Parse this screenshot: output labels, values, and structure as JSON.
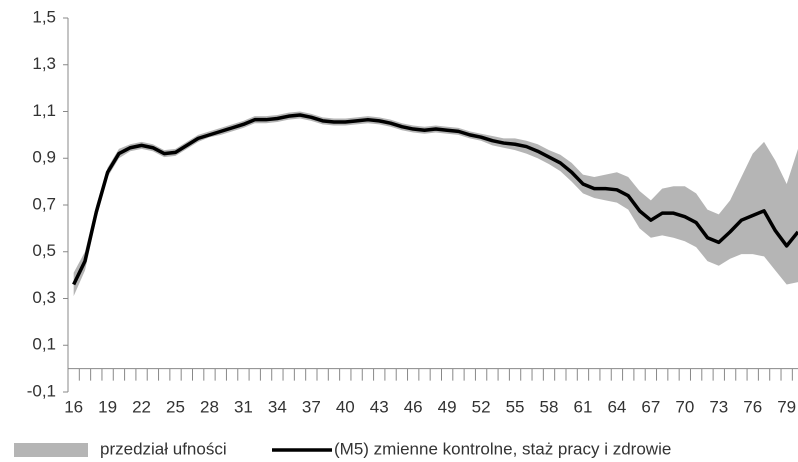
{
  "chart_data": {
    "type": "line",
    "x": [
      16,
      17,
      18,
      19,
      20,
      21,
      22,
      23,
      24,
      25,
      26,
      27,
      28,
      29,
      30,
      31,
      32,
      33,
      34,
      35,
      36,
      37,
      38,
      39,
      40,
      41,
      42,
      43,
      44,
      45,
      46,
      47,
      48,
      49,
      50,
      51,
      52,
      53,
      54,
      55,
      56,
      57,
      58,
      59,
      60,
      61,
      62,
      63,
      64,
      65,
      66,
      67,
      68,
      69,
      70,
      71,
      72,
      73,
      74,
      75,
      76,
      77,
      78,
      79,
      80
    ],
    "series": [
      {
        "name": "przedział ufności",
        "color": "#b5b5b5",
        "lower": [
          0.31,
          0.42,
          0.64,
          0.82,
          0.9,
          0.93,
          0.94,
          0.93,
          0.905,
          0.91,
          0.94,
          0.97,
          0.99,
          1.0,
          1.015,
          1.03,
          1.05,
          1.05,
          1.055,
          1.065,
          1.07,
          1.06,
          1.045,
          1.04,
          1.04,
          1.045,
          1.05,
          1.045,
          1.035,
          1.02,
          1.01,
          1.005,
          1.01,
          1.005,
          1.0,
          0.985,
          0.975,
          0.955,
          0.945,
          0.935,
          0.92,
          0.9,
          0.875,
          0.845,
          0.8,
          0.75,
          0.73,
          0.72,
          0.71,
          0.68,
          0.6,
          0.56,
          0.57,
          0.56,
          0.545,
          0.52,
          0.46,
          0.44,
          0.47,
          0.49,
          0.49,
          0.48,
          0.42,
          0.36,
          0.37
        ],
        "upper": [
          0.41,
          0.5,
          0.7,
          0.86,
          0.94,
          0.96,
          0.97,
          0.96,
          0.935,
          0.94,
          0.97,
          1.0,
          1.015,
          1.03,
          1.045,
          1.06,
          1.08,
          1.08,
          1.085,
          1.095,
          1.1,
          1.09,
          1.075,
          1.07,
          1.07,
          1.075,
          1.08,
          1.075,
          1.065,
          1.05,
          1.04,
          1.035,
          1.04,
          1.035,
          1.03,
          1.015,
          1.005,
          0.995,
          0.985,
          0.985,
          0.975,
          0.96,
          0.935,
          0.915,
          0.88,
          0.83,
          0.82,
          0.83,
          0.84,
          0.82,
          0.76,
          0.72,
          0.77,
          0.78,
          0.78,
          0.75,
          0.68,
          0.66,
          0.72,
          0.82,
          0.92,
          0.97,
          0.89,
          0.79,
          0.94
        ]
      },
      {
        "name": "(M5) zmienne kontrolne, staż pracy i zdrowie",
        "color": "#000000",
        "values": [
          0.36,
          0.46,
          0.67,
          0.84,
          0.92,
          0.945,
          0.955,
          0.945,
          0.92,
          0.925,
          0.955,
          0.985,
          1.0,
          1.015,
          1.03,
          1.045,
          1.065,
          1.065,
          1.07,
          1.08,
          1.085,
          1.075,
          1.06,
          1.055,
          1.055,
          1.06,
          1.065,
          1.06,
          1.05,
          1.035,
          1.025,
          1.02,
          1.025,
          1.02,
          1.015,
          1.0,
          0.99,
          0.975,
          0.965,
          0.96,
          0.95,
          0.93,
          0.905,
          0.88,
          0.84,
          0.79,
          0.77,
          0.77,
          0.765,
          0.74,
          0.675,
          0.635,
          0.665,
          0.665,
          0.65,
          0.625,
          0.56,
          0.54,
          0.585,
          0.635,
          0.655,
          0.675,
          0.59,
          0.525,
          0.585
        ]
      }
    ],
    "xlim": [
      15.5,
      80
    ],
    "xticks": [
      16,
      19,
      22,
      25,
      28,
      31,
      34,
      37,
      40,
      43,
      46,
      49,
      52,
      55,
      58,
      61,
      64,
      67,
      70,
      73,
      76,
      79
    ],
    "ylim": [
      -0.1,
      1.5
    ],
    "yticks": [
      {
        "value": -0.1,
        "label": "-0,1"
      },
      {
        "value": 0.1,
        "label": "0,1"
      },
      {
        "value": 0.3,
        "label": "0,3"
      },
      {
        "value": 0.5,
        "label": "0,5"
      },
      {
        "value": 0.7,
        "label": "0,7"
      },
      {
        "value": 0.9,
        "label": "0,9"
      },
      {
        "value": 1.1,
        "label": "1,1"
      },
      {
        "value": 1.3,
        "label": "1,3"
      },
      {
        "value": 1.5,
        "label": "1,5"
      }
    ],
    "grid": false,
    "legend": "bottom"
  }
}
